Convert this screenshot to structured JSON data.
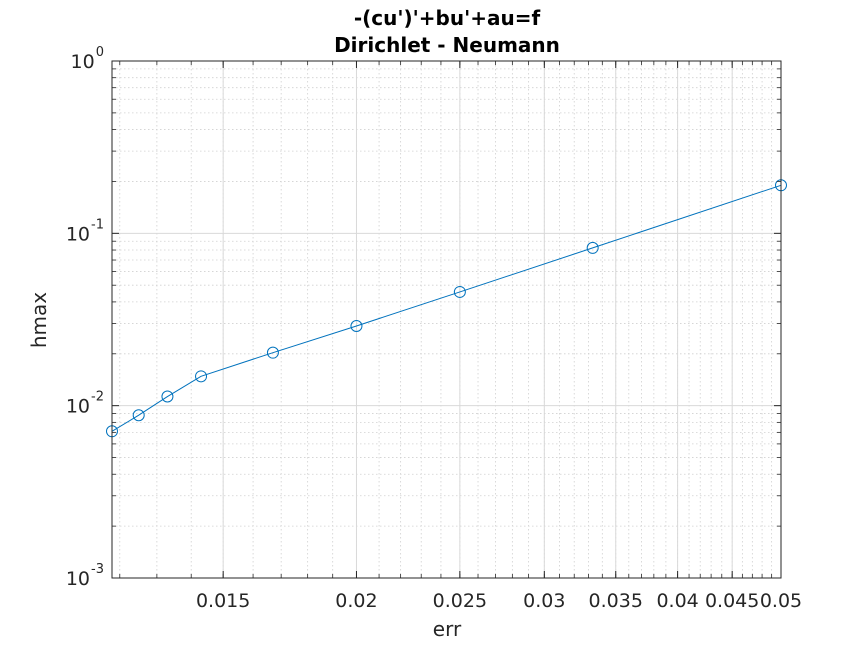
{
  "chart_data": {
    "type": "line",
    "title": [
      "-(cu')'+bu'+au=f",
      "Dirichlet - Neumann"
    ],
    "xlabel": "err",
    "ylabel": "hmax",
    "xscale": "log",
    "yscale": "log",
    "xlim": [
      0.0118,
      0.05
    ],
    "ylim": [
      0.001,
      1
    ],
    "grid": true,
    "minor_grid": true,
    "x_ticks": [
      {
        "value": 0.015,
        "label": "0.015"
      },
      {
        "value": 0.02,
        "label": "0.02"
      },
      {
        "value": 0.025,
        "label": "0.025"
      },
      {
        "value": 0.03,
        "label": "0.03"
      },
      {
        "value": 0.035,
        "label": "0.035"
      },
      {
        "value": 0.04,
        "label": "0.04"
      },
      {
        "value": 0.045,
        "label": "0.045"
      },
      {
        "value": 0.05,
        "label": "0.05"
      }
    ],
    "y_ticks": [
      {
        "value": 0.001,
        "base": "10",
        "exp": "-3"
      },
      {
        "value": 0.01,
        "base": "10",
        "exp": "-2"
      },
      {
        "value": 0.1,
        "base": "10",
        "exp": "-1"
      },
      {
        "value": 1,
        "base": "10",
        "exp": "0"
      }
    ],
    "series": [
      {
        "marker": "circle",
        "color": "#0072bd",
        "x": [
          0.0118,
          0.0125,
          0.0133,
          0.0143,
          0.0167,
          0.02,
          0.025,
          0.0333,
          0.05
        ],
        "y": [
          0.0071,
          0.0088,
          0.0113,
          0.0148,
          0.0203,
          0.029,
          0.0457,
          0.0823,
          0.19
        ]
      }
    ]
  }
}
